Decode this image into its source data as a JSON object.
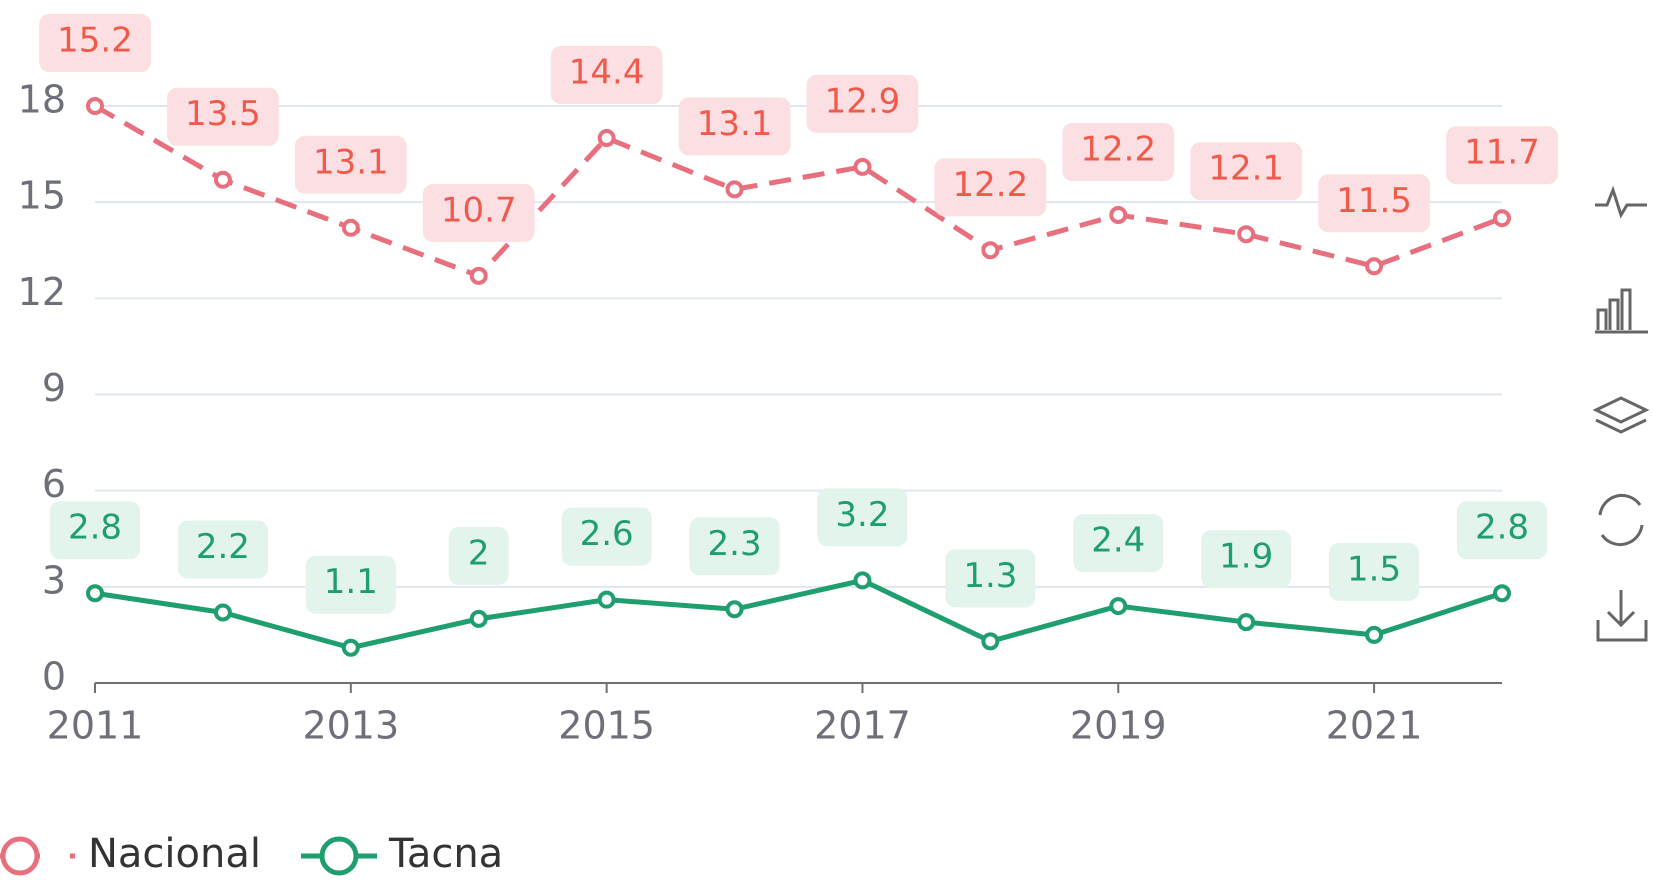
{
  "chart_data": {
    "type": "line",
    "stacked": true,
    "categories": [
      "2011",
      null,
      "2013",
      null,
      "2015",
      null,
      "2017",
      null,
      "2019",
      null,
      "2021",
      null
    ],
    "series": [
      {
        "name": "Nacional",
        "color": "#e8707e",
        "label_color": "#f05a4a",
        "label_bg": "#fbdfe2",
        "dashed": true,
        "values": [
          15.2,
          13.5,
          13.1,
          10.7,
          14.4,
          13.1,
          12.9,
          12.2,
          12.2,
          12.1,
          11.5,
          11.7
        ]
      },
      {
        "name": "Tacna",
        "color": "#1f9e6e",
        "label_color": "#1f9e6e",
        "label_bg": "#e2f4ec",
        "dashed": false,
        "values": [
          2.8,
          2.2,
          1.1,
          2,
          2.6,
          2.3,
          3.2,
          1.3,
          2.4,
          1.9,
          1.5,
          2.8
        ]
      }
    ],
    "ylim": [
      0,
      18
    ],
    "yticks": [
      0,
      3,
      6,
      9,
      12,
      15,
      18
    ],
    "grid": true,
    "legend": "bottom-left"
  }
}
